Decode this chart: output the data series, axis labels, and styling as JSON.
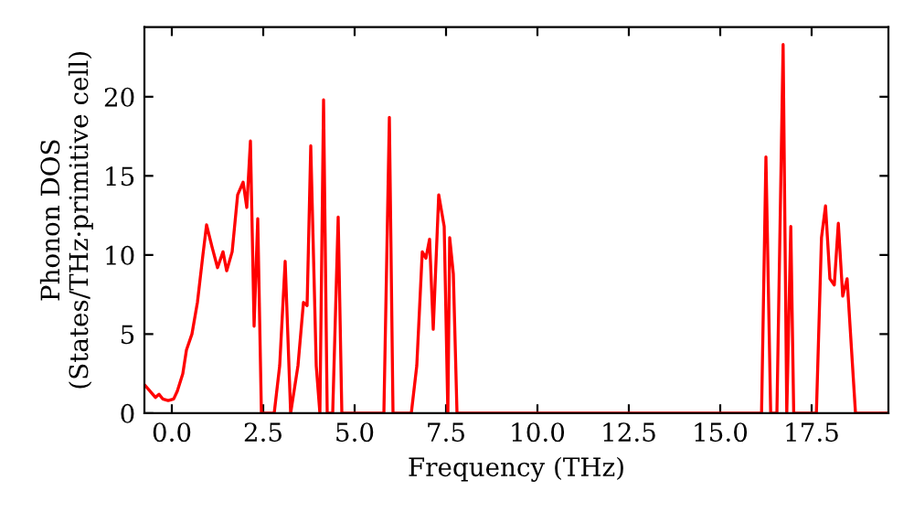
{
  "chart_data": {
    "type": "line",
    "xlabel": "Frequency (THz)",
    "ylabel": "Phonon DOS\n(States/THz·primitive cell)",
    "x": [
      -0.75,
      -0.6,
      -0.45,
      -0.35,
      -0.25,
      -0.1,
      0.05,
      0.15,
      0.3,
      0.4,
      0.55,
      0.7,
      0.85,
      0.95,
      1.1,
      1.25,
      1.4,
      1.5,
      1.65,
      1.8,
      1.95,
      2.05,
      2.15,
      2.25,
      2.35,
      2.45,
      2.8,
      2.95,
      3.1,
      3.25,
      3.45,
      3.6,
      3.7,
      3.8,
      3.95,
      4.05,
      4.15,
      4.25,
      4.4,
      4.55,
      4.65,
      5.8,
      5.95,
      6.05,
      6.55,
      6.7,
      6.85,
      6.95,
      7.05,
      7.15,
      7.3,
      7.45,
      7.55,
      7.6,
      7.7,
      7.8,
      16.13,
      16.25,
      16.38,
      16.55,
      16.72,
      16.82,
      16.93,
      17.01,
      17.63,
      17.77,
      17.88,
      18.0,
      18.12,
      18.23,
      18.35,
      18.47,
      18.7,
      19.6
    ],
    "series": [
      {
        "color": "#ff0000",
        "values": [
          1.8,
          1.4,
          1.0,
          1.2,
          0.9,
          0.8,
          0.9,
          1.4,
          2.5,
          4,
          5,
          7,
          10,
          11.9,
          10.5,
          9.2,
          10.2,
          9.0,
          10.2,
          13.8,
          14.6,
          13.0,
          17.2,
          5.5,
          12.3,
          0,
          0,
          3,
          9.6,
          0,
          3,
          7,
          6.8,
          16.9,
          3,
          0,
          19.8,
          0,
          0,
          12.4,
          0,
          0,
          18.7,
          0,
          0,
          3,
          10.2,
          9.8,
          11,
          5.3,
          13.8,
          11.8,
          0,
          11.1,
          8.8,
          0,
          0,
          16.2,
          0,
          0,
          23.3,
          0,
          11.8,
          0,
          0,
          11.1,
          13.1,
          8.5,
          8.1,
          12.0,
          7.4,
          8.5,
          0,
          0
        ]
      }
    ],
    "xlim": [
      -0.75,
      19.6
    ],
    "ylim": [
      0,
      24.4
    ],
    "xticks": [
      {
        "value": 0,
        "label": "0.0"
      },
      {
        "value": 2.5,
        "label": "2.5"
      },
      {
        "value": 5,
        "label": "5.0"
      },
      {
        "value": 7.5,
        "label": "7.5"
      },
      {
        "value": 10,
        "label": "10.0"
      },
      {
        "value": 12.5,
        "label": "12.5"
      },
      {
        "value": 15,
        "label": "15.0"
      },
      {
        "value": 17.5,
        "label": "17.5"
      }
    ],
    "yticks": [
      0,
      5,
      10,
      15,
      20
    ],
    "grid": false,
    "line_style": "solid",
    "marker": "none"
  }
}
